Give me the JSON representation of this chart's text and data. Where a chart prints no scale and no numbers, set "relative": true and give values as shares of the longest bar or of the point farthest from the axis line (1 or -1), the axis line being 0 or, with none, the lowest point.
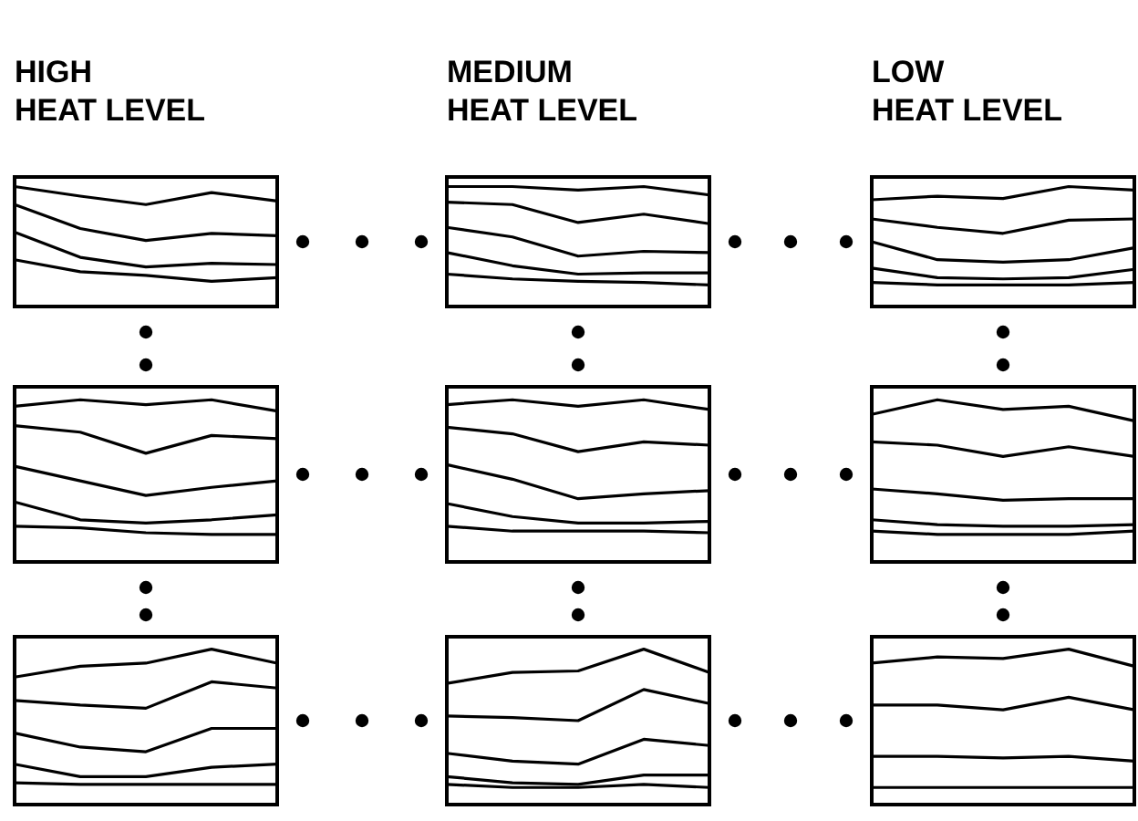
{
  "chart_data": [
    {
      "type": "line",
      "title": "HIGH\nHEAT LEVEL",
      "relative": true,
      "categories": [
        null,
        null,
        null,
        null,
        null
      ],
      "series": [
        {
          "color": "#000000",
          "values": [
            1,
            0.92,
            0.85,
            0.95,
            0.88
          ]
        },
        {
          "color": "#000000",
          "values": [
            0.85,
            0.65,
            0.55,
            0.61,
            0.59
          ]
        },
        {
          "color": "#000000",
          "values": [
            0.62,
            0.41,
            0.33,
            0.36,
            0.35
          ]
        },
        {
          "color": "#000000",
          "values": [
            0.39,
            0.29,
            0.26,
            0.21,
            0.24
          ]
        }
      ]
    },
    {
      "type": "line",
      "title": "MEDIUM\nHEAT LEVEL",
      "relative": true,
      "categories": [
        null,
        null,
        null,
        null,
        null
      ],
      "series": [
        {
          "color": "#000000",
          "values": [
            1,
            1,
            0.97,
            1,
            0.93
          ]
        },
        {
          "color": "#000000",
          "values": [
            0.87,
            0.85,
            0.7,
            0.77,
            0.69
          ]
        },
        {
          "color": "#000000",
          "values": [
            0.66,
            0.58,
            0.42,
            0.46,
            0.45
          ]
        },
        {
          "color": "#000000",
          "values": [
            0.45,
            0.34,
            0.27,
            0.28,
            0.28
          ]
        },
        {
          "color": "#000000",
          "values": [
            0.27,
            0.23,
            0.21,
            0.2,
            0.18
          ]
        }
      ]
    },
    {
      "type": "line",
      "title": "LOW\nHEAT LEVEL",
      "relative": true,
      "categories": [
        null,
        null,
        null,
        null,
        null
      ],
      "series": [
        {
          "color": "#000000",
          "values": [
            0.89,
            0.92,
            0.9,
            1,
            0.97
          ]
        },
        {
          "color": "#000000",
          "values": [
            0.73,
            0.66,
            0.61,
            0.72,
            0.73
          ]
        },
        {
          "color": "#000000",
          "values": [
            0.54,
            0.39,
            0.37,
            0.39,
            0.49
          ]
        },
        {
          "color": "#000000",
          "values": [
            0.32,
            0.24,
            0.23,
            0.24,
            0.31
          ]
        },
        {
          "color": "#000000",
          "values": [
            0.2,
            0.18,
            0.18,
            0.18,
            0.2
          ]
        }
      ]
    },
    {
      "type": "line",
      "relative": true,
      "categories": [
        null,
        null,
        null,
        null,
        null
      ],
      "series": [
        {
          "color": "#000000",
          "values": [
            0.96,
            1,
            0.97,
            1,
            0.93
          ]
        },
        {
          "color": "#000000",
          "values": [
            0.84,
            0.8,
            0.67,
            0.78,
            0.76
          ]
        },
        {
          "color": "#000000",
          "values": [
            0.59,
            0.5,
            0.41,
            0.46,
            0.5
          ]
        },
        {
          "color": "#000000",
          "values": [
            0.37,
            0.26,
            0.24,
            0.26,
            0.29
          ]
        },
        {
          "color": "#000000",
          "values": [
            0.22,
            0.21,
            0.18,
            0.17,
            0.17
          ]
        }
      ]
    },
    {
      "type": "line",
      "relative": true,
      "categories": [
        null,
        null,
        null,
        null,
        null
      ],
      "series": [
        {
          "color": "#000000",
          "values": [
            0.97,
            1,
            0.96,
            1,
            0.94
          ]
        },
        {
          "color": "#000000",
          "values": [
            0.83,
            0.79,
            0.68,
            0.74,
            0.72
          ]
        },
        {
          "color": "#000000",
          "values": [
            0.6,
            0.51,
            0.39,
            0.42,
            0.44
          ]
        },
        {
          "color": "#000000",
          "values": [
            0.36,
            0.28,
            0.24,
            0.24,
            0.25
          ]
        },
        {
          "color": "#000000",
          "values": [
            0.22,
            0.19,
            0.19,
            0.19,
            0.18
          ]
        }
      ]
    },
    {
      "type": "line",
      "relative": true,
      "categories": [
        null,
        null,
        null,
        null,
        null
      ],
      "series": [
        {
          "color": "#000000",
          "values": [
            0.91,
            1,
            0.94,
            0.96,
            0.87
          ]
        },
        {
          "color": "#000000",
          "values": [
            0.74,
            0.72,
            0.65,
            0.71,
            0.65
          ]
        },
        {
          "color": "#000000",
          "values": [
            0.45,
            0.42,
            0.38,
            0.39,
            0.39
          ]
        },
        {
          "color": "#000000",
          "values": [
            0.26,
            0.23,
            0.22,
            0.22,
            0.23
          ]
        },
        {
          "color": "#000000",
          "values": [
            0.19,
            0.17,
            0.17,
            0.17,
            0.19
          ]
        }
      ]
    },
    {
      "type": "line",
      "relative": true,
      "categories": [
        null,
        null,
        null,
        null,
        null
      ],
      "series": [
        {
          "color": "#000000",
          "values": [
            0.82,
            0.89,
            0.91,
            1,
            0.91
          ]
        },
        {
          "color": "#000000",
          "values": [
            0.67,
            0.64,
            0.62,
            0.79,
            0.75
          ]
        },
        {
          "color": "#000000",
          "values": [
            0.46,
            0.37,
            0.34,
            0.49,
            0.49
          ]
        },
        {
          "color": "#000000",
          "values": [
            0.26,
            0.18,
            0.18,
            0.24,
            0.26
          ]
        },
        {
          "color": "#000000",
          "values": [
            0.14,
            0.13,
            0.13,
            0.13,
            0.13
          ]
        }
      ]
    },
    {
      "type": "line",
      "relative": true,
      "categories": [
        null,
        null,
        null,
        null,
        null
      ],
      "series": [
        {
          "color": "#000000",
          "values": [
            0.78,
            0.85,
            0.86,
            1,
            0.85
          ]
        },
        {
          "color": "#000000",
          "values": [
            0.57,
            0.56,
            0.54,
            0.74,
            0.65
          ]
        },
        {
          "color": "#000000",
          "values": [
            0.33,
            0.28,
            0.26,
            0.42,
            0.38
          ]
        },
        {
          "color": "#000000",
          "values": [
            0.18,
            0.14,
            0.13,
            0.19,
            0.19
          ]
        },
        {
          "color": "#000000",
          "values": [
            0.13,
            0.11,
            0.11,
            0.13,
            0.11
          ]
        }
      ]
    },
    {
      "type": "line",
      "relative": true,
      "categories": [
        null,
        null,
        null,
        null,
        null
      ],
      "series": [
        {
          "color": "#000000",
          "values": [
            0.91,
            0.95,
            0.94,
            1,
            0.89
          ]
        },
        {
          "color": "#000000",
          "values": [
            0.64,
            0.64,
            0.61,
            0.69,
            0.61
          ]
        },
        {
          "color": "#000000",
          "values": [
            0.31,
            0.31,
            0.3,
            0.31,
            0.28
          ]
        },
        {
          "color": "#000000",
          "values": [
            0.11,
            0.11,
            0.11,
            0.11,
            0.11
          ]
        }
      ]
    }
  ]
}
